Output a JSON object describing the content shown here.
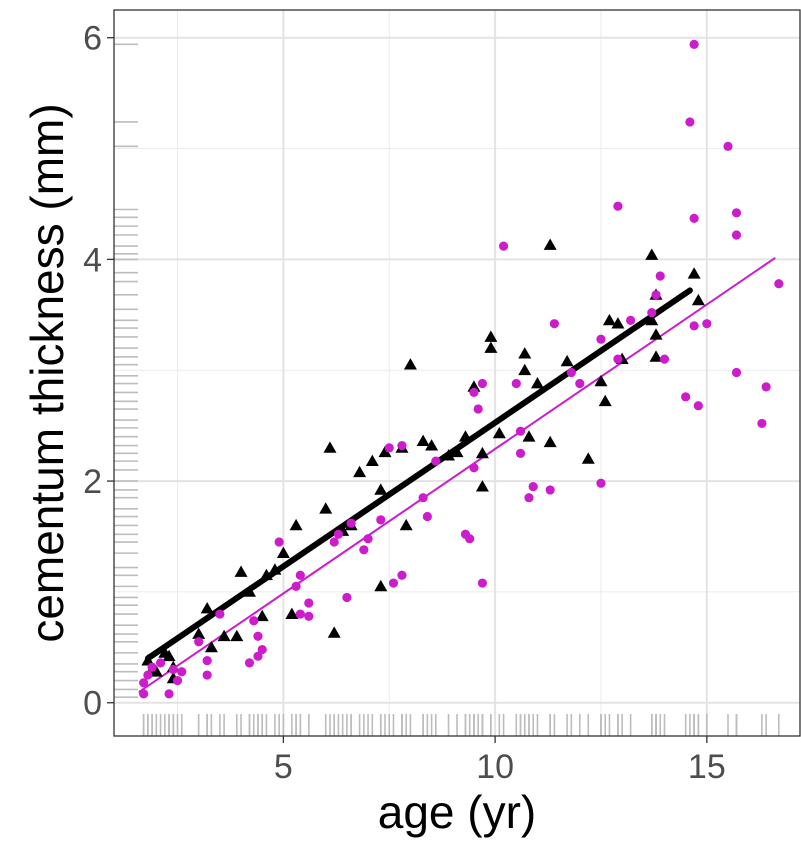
{
  "chart_data": {
    "type": "scatter",
    "xlabel": "age (yr)",
    "ylabel": "cementum thickness (mm)",
    "xlim": [
      1.0,
      17.2
    ],
    "ylim": [
      -0.3,
      6.25
    ],
    "x_ticks": [
      5,
      10,
      15
    ],
    "y_ticks": [
      0,
      2,
      4,
      6
    ],
    "grid": true,
    "rug": true,
    "series": [
      {
        "marker": "triangle",
        "color": "#000000",
        "points": [
          [
            1.8,
            0.38
          ],
          [
            1.9,
            0.3
          ],
          [
            2.0,
            0.28
          ],
          [
            2.2,
            0.45
          ],
          [
            2.4,
            0.22
          ],
          [
            2.4,
            0.32
          ],
          [
            2.3,
            0.42
          ],
          [
            3.0,
            0.62
          ],
          [
            3.2,
            0.85
          ],
          [
            3.3,
            0.5
          ],
          [
            3.6,
            0.6
          ],
          [
            3.9,
            0.6
          ],
          [
            4.2,
            1.0
          ],
          [
            4.0,
            1.18
          ],
          [
            4.5,
            0.78
          ],
          [
            4.6,
            1.15
          ],
          [
            4.8,
            1.2
          ],
          [
            5.0,
            1.35
          ],
          [
            5.2,
            0.8
          ],
          [
            5.3,
            1.6
          ],
          [
            6.0,
            1.75
          ],
          [
            6.1,
            2.3
          ],
          [
            6.2,
            0.63
          ],
          [
            6.4,
            1.55
          ],
          [
            6.6,
            1.6
          ],
          [
            6.8,
            2.08
          ],
          [
            7.1,
            2.18
          ],
          [
            7.3,
            1.05
          ],
          [
            7.3,
            1.92
          ],
          [
            7.4,
            2.26
          ],
          [
            7.9,
            1.6
          ],
          [
            7.8,
            2.3
          ],
          [
            8.0,
            3.05
          ],
          [
            8.3,
            2.36
          ],
          [
            8.5,
            2.32
          ],
          [
            8.9,
            2.23
          ],
          [
            9.1,
            2.26
          ],
          [
            9.3,
            2.4
          ],
          [
            9.5,
            2.85
          ],
          [
            9.7,
            1.95
          ],
          [
            9.7,
            2.25
          ],
          [
            9.9,
            3.2
          ],
          [
            9.9,
            3.3
          ],
          [
            10.1,
            2.43
          ],
          [
            10.7,
            3.0
          ],
          [
            10.7,
            3.15
          ],
          [
            10.8,
            2.4
          ],
          [
            11.0,
            2.88
          ],
          [
            11.3,
            2.35
          ],
          [
            11.3,
            4.13
          ],
          [
            11.7,
            3.08
          ],
          [
            12.2,
            2.2
          ],
          [
            12.5,
            2.9
          ],
          [
            12.6,
            2.72
          ],
          [
            12.7,
            3.45
          ],
          [
            12.9,
            3.42
          ],
          [
            13.0,
            3.1
          ],
          [
            13.7,
            3.45
          ],
          [
            13.8,
            3.12
          ],
          [
            13.8,
            3.68
          ],
          [
            13.7,
            4.04
          ],
          [
            13.8,
            3.32
          ],
          [
            14.7,
            3.87
          ],
          [
            14.8,
            3.63
          ]
        ]
      },
      {
        "marker": "circle",
        "color": "#cc1ccc",
        "points": [
          [
            1.7,
            0.08
          ],
          [
            1.7,
            0.18
          ],
          [
            1.8,
            0.25
          ],
          [
            1.9,
            0.32
          ],
          [
            2.1,
            0.36
          ],
          [
            2.3,
            0.08
          ],
          [
            2.4,
            0.3
          ],
          [
            2.5,
            0.2
          ],
          [
            2.6,
            0.28
          ],
          [
            3.0,
            0.55
          ],
          [
            3.2,
            0.25
          ],
          [
            3.2,
            0.38
          ],
          [
            3.5,
            0.8
          ],
          [
            4.2,
            0.36
          ],
          [
            4.3,
            0.74
          ],
          [
            4.4,
            0.6
          ],
          [
            4.4,
            0.42
          ],
          [
            4.5,
            0.48
          ],
          [
            4.9,
            1.45
          ],
          [
            5.3,
            1.05
          ],
          [
            5.4,
            1.15
          ],
          [
            5.4,
            0.8
          ],
          [
            5.6,
            0.78
          ],
          [
            5.6,
            0.9
          ],
          [
            6.2,
            1.45
          ],
          [
            6.3,
            1.52
          ],
          [
            6.5,
            0.95
          ],
          [
            6.6,
            1.62
          ],
          [
            6.9,
            1.38
          ],
          [
            7.0,
            1.48
          ],
          [
            7.3,
            1.65
          ],
          [
            7.5,
            2.3
          ],
          [
            7.6,
            1.08
          ],
          [
            7.8,
            1.15
          ],
          [
            7.8,
            2.32
          ],
          [
            8.3,
            1.85
          ],
          [
            8.4,
            1.68
          ],
          [
            8.6,
            2.18
          ],
          [
            9.3,
            1.52
          ],
          [
            9.4,
            1.48
          ],
          [
            9.5,
            2.12
          ],
          [
            9.5,
            2.8
          ],
          [
            9.6,
            2.65
          ],
          [
            9.7,
            1.08
          ],
          [
            9.7,
            2.88
          ],
          [
            10.2,
            4.12
          ],
          [
            10.5,
            2.88
          ],
          [
            10.6,
            2.25
          ],
          [
            10.6,
            2.45
          ],
          [
            10.8,
            1.85
          ],
          [
            10.9,
            1.95
          ],
          [
            11.3,
            1.92
          ],
          [
            11.4,
            3.42
          ],
          [
            11.8,
            2.98
          ],
          [
            12.0,
            2.88
          ],
          [
            12.5,
            1.98
          ],
          [
            12.5,
            3.28
          ],
          [
            12.9,
            3.1
          ],
          [
            12.9,
            4.48
          ],
          [
            13.2,
            3.45
          ],
          [
            13.7,
            3.52
          ],
          [
            13.8,
            3.68
          ],
          [
            13.9,
            3.85
          ],
          [
            14.0,
            3.1
          ],
          [
            14.5,
            2.76
          ],
          [
            14.6,
            5.24
          ],
          [
            14.7,
            5.94
          ],
          [
            14.7,
            3.4
          ],
          [
            14.7,
            4.37
          ],
          [
            14.8,
            2.68
          ],
          [
            15.0,
            3.42
          ],
          [
            15.5,
            5.02
          ],
          [
            15.7,
            4.42
          ],
          [
            15.7,
            4.22
          ],
          [
            15.7,
            2.98
          ],
          [
            16.3,
            2.52
          ],
          [
            16.4,
            2.85
          ],
          [
            16.7,
            3.78
          ]
        ]
      }
    ],
    "fits": [
      {
        "color": "#000000",
        "width": 6,
        "x": [
          1.8,
          14.6
        ],
        "y": [
          0.4,
          3.72
        ]
      },
      {
        "color": "#cc1ccc",
        "width": 2,
        "x": [
          1.6,
          16.6
        ],
        "y": [
          0.1,
          4.01
        ]
      }
    ],
    "rug_y_values": [
      0.05,
      0.12,
      0.2,
      0.28,
      0.35,
      0.45,
      0.55,
      0.62,
      0.7,
      0.8,
      0.88,
      0.95,
      1.05,
      1.15,
      1.22,
      1.35,
      1.45,
      1.52,
      1.6,
      1.68,
      1.75,
      1.85,
      1.92,
      2.0,
      2.1,
      2.18,
      2.25,
      2.32,
      2.4,
      2.48,
      2.55,
      2.65,
      2.72,
      2.8,
      2.88,
      2.95,
      3.05,
      3.12,
      3.2,
      3.3,
      3.38,
      3.45,
      3.55,
      3.68,
      3.8,
      3.88,
      4.0,
      4.05,
      4.12,
      4.22,
      4.3,
      4.38,
      4.45,
      5.02,
      5.24,
      5.94
    ]
  }
}
